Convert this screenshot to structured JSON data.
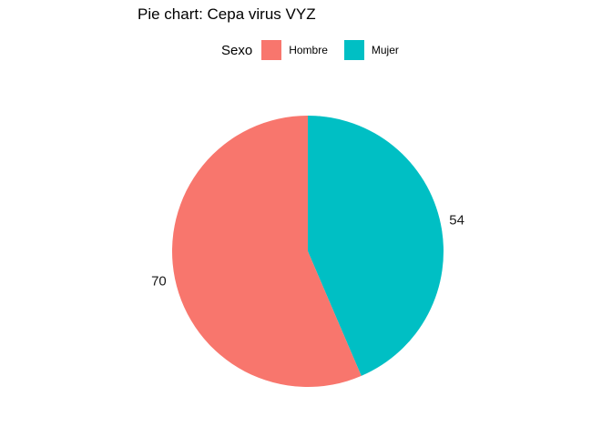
{
  "chart_data": {
    "type": "pie",
    "title": "Pie chart: Cepa virus VYZ",
    "legend_title": "Sexo",
    "legend_position": "top",
    "grid": false,
    "categories": [
      "Hombre",
      "Mujer"
    ],
    "values": [
      70,
      54
    ],
    "colors": [
      "#F8766D",
      "#00BFC4"
    ],
    "labels": [
      "70",
      "54"
    ]
  }
}
